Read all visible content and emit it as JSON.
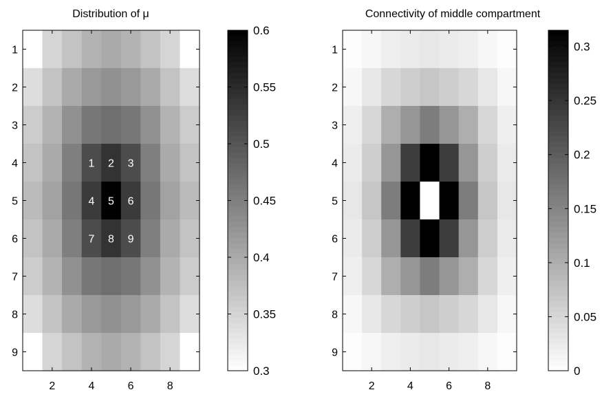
{
  "chart_data": [
    {
      "type": "heatmap",
      "title": "Distribution of μ",
      "x_ticks": [
        2,
        4,
        6,
        8
      ],
      "y_ticks": [
        1,
        2,
        3,
        4,
        5,
        6,
        7,
        8,
        9
      ],
      "grid": false,
      "colormap": "gray (white = low, black = high)",
      "colorbar": {
        "range": [
          0.3,
          0.6
        ],
        "ticks": [
          "0.6",
          "0.55",
          "0.5",
          "0.45",
          "0.4",
          "0.35",
          "0.3"
        ],
        "placement": "right"
      },
      "rows": 9,
      "cols": 9,
      "values": [
        [
          0.3,
          0.35,
          0.37,
          0.39,
          0.4,
          0.39,
          0.37,
          0.35,
          0.3
        ],
        [
          0.34,
          0.37,
          0.4,
          0.42,
          0.43,
          0.42,
          0.4,
          0.37,
          0.34
        ],
        [
          0.36,
          0.39,
          0.43,
          0.46,
          0.47,
          0.46,
          0.43,
          0.39,
          0.36
        ],
        [
          0.37,
          0.4,
          0.45,
          0.51,
          0.54,
          0.51,
          0.45,
          0.4,
          0.37
        ],
        [
          0.38,
          0.41,
          0.46,
          0.53,
          0.6,
          0.53,
          0.46,
          0.41,
          0.38
        ],
        [
          0.37,
          0.4,
          0.45,
          0.51,
          0.54,
          0.51,
          0.45,
          0.4,
          0.37
        ],
        [
          0.36,
          0.39,
          0.43,
          0.46,
          0.47,
          0.46,
          0.43,
          0.39,
          0.36
        ],
        [
          0.34,
          0.37,
          0.4,
          0.42,
          0.43,
          0.42,
          0.4,
          0.37,
          0.34
        ],
        [
          0.3,
          0.35,
          0.37,
          0.39,
          0.4,
          0.39,
          0.37,
          0.35,
          0.3
        ]
      ],
      "annotations": [
        {
          "row": 4,
          "col": 4,
          "text": "1"
        },
        {
          "row": 4,
          "col": 5,
          "text": "2"
        },
        {
          "row": 4,
          "col": 6,
          "text": "3"
        },
        {
          "row": 5,
          "col": 4,
          "text": "4"
        },
        {
          "row": 5,
          "col": 5,
          "text": "5"
        },
        {
          "row": 5,
          "col": 6,
          "text": "6"
        },
        {
          "row": 6,
          "col": 4,
          "text": "7"
        },
        {
          "row": 6,
          "col": 5,
          "text": "8"
        },
        {
          "row": 6,
          "col": 6,
          "text": "9"
        }
      ]
    },
    {
      "type": "heatmap",
      "title": "Connectivity of middle compartment",
      "x_ticks": [
        2,
        4,
        6,
        8
      ],
      "y_ticks": [
        1,
        2,
        3,
        4,
        5,
        6,
        7,
        8,
        9
      ],
      "grid": false,
      "colormap": "gray (white = low, black = high)",
      "colorbar": {
        "range": [
          0,
          0.315
        ],
        "ticks": [
          "0.3",
          "0.25",
          "0.2",
          "0.15",
          "0.1",
          "0.05",
          "0"
        ],
        "placement": "right"
      },
      "rows": 9,
      "cols": 9,
      "values": [
        [
          0.002,
          0.01,
          0.02,
          0.025,
          0.03,
          0.025,
          0.02,
          0.01,
          0.002
        ],
        [
          0.01,
          0.03,
          0.05,
          0.06,
          0.07,
          0.06,
          0.05,
          0.03,
          0.01
        ],
        [
          0.02,
          0.05,
          0.1,
          0.13,
          0.16,
          0.13,
          0.1,
          0.05,
          0.02
        ],
        [
          0.025,
          0.06,
          0.13,
          0.24,
          0.315,
          0.24,
          0.13,
          0.06,
          0.025
        ],
        [
          0.03,
          0.07,
          0.16,
          0.315,
          0.0,
          0.315,
          0.16,
          0.07,
          0.03
        ],
        [
          0.025,
          0.06,
          0.13,
          0.24,
          0.315,
          0.24,
          0.13,
          0.06,
          0.025
        ],
        [
          0.02,
          0.05,
          0.1,
          0.13,
          0.16,
          0.13,
          0.1,
          0.05,
          0.02
        ],
        [
          0.01,
          0.03,
          0.05,
          0.06,
          0.07,
          0.06,
          0.05,
          0.03,
          0.01
        ],
        [
          0.002,
          0.01,
          0.02,
          0.025,
          0.03,
          0.025,
          0.02,
          0.01,
          0.002
        ]
      ],
      "annotations": []
    }
  ]
}
